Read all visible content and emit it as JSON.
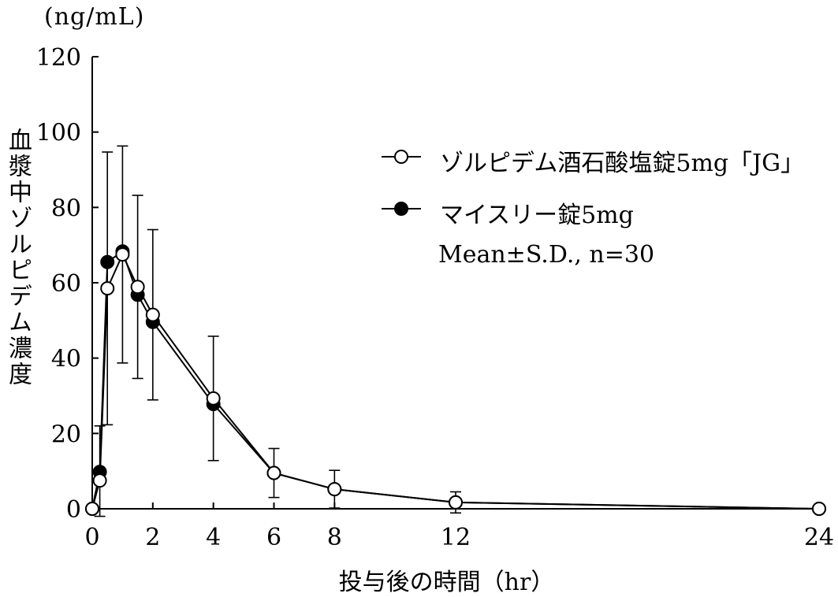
{
  "chart_data": {
    "type": "line",
    "unit_label": "(ng/mL)",
    "ylabel": "血漿中ゾルピデム濃度",
    "xlabel": "投与後の時間（hr）",
    "ylim": [
      0,
      120
    ],
    "yticks": [
      0,
      20,
      40,
      60,
      80,
      100,
      120
    ],
    "xticks": [
      0,
      2,
      4,
      6,
      8,
      12,
      24
    ],
    "xlim": [
      0,
      24
    ],
    "note": "Mean±S.D., n=30",
    "legend_position": "top-right",
    "series": [
      {
        "name": "マイスリー錠5mg",
        "marker": "filled-circle",
        "x": [
          0,
          0.25,
          0.5,
          1,
          1.5,
          2,
          4,
          6,
          8,
          12,
          24
        ],
        "y": [
          0,
          9.8,
          65.5,
          68.3,
          56.8,
          49.6,
          27.8,
          9.5,
          5.2,
          1.7,
          0
        ],
        "sd": [
          0,
          0,
          0,
          0,
          0,
          0,
          0,
          0,
          0,
          0,
          0
        ]
      },
      {
        "name": "ゾルピデム酒石酸塩錠5mg「JG」",
        "marker": "open-circle",
        "x": [
          0,
          0.25,
          0.5,
          1,
          1.5,
          2,
          4,
          6,
          8,
          12,
          24
        ],
        "y": [
          0,
          7.5,
          58.5,
          67.5,
          58.9,
          51.5,
          29.3,
          9.5,
          5.2,
          1.7,
          0
        ],
        "sd": [
          0,
          14.5,
          36.2,
          28.8,
          24.3,
          22.6,
          16.5,
          6.5,
          5.0,
          2.8,
          0
        ]
      }
    ]
  }
}
